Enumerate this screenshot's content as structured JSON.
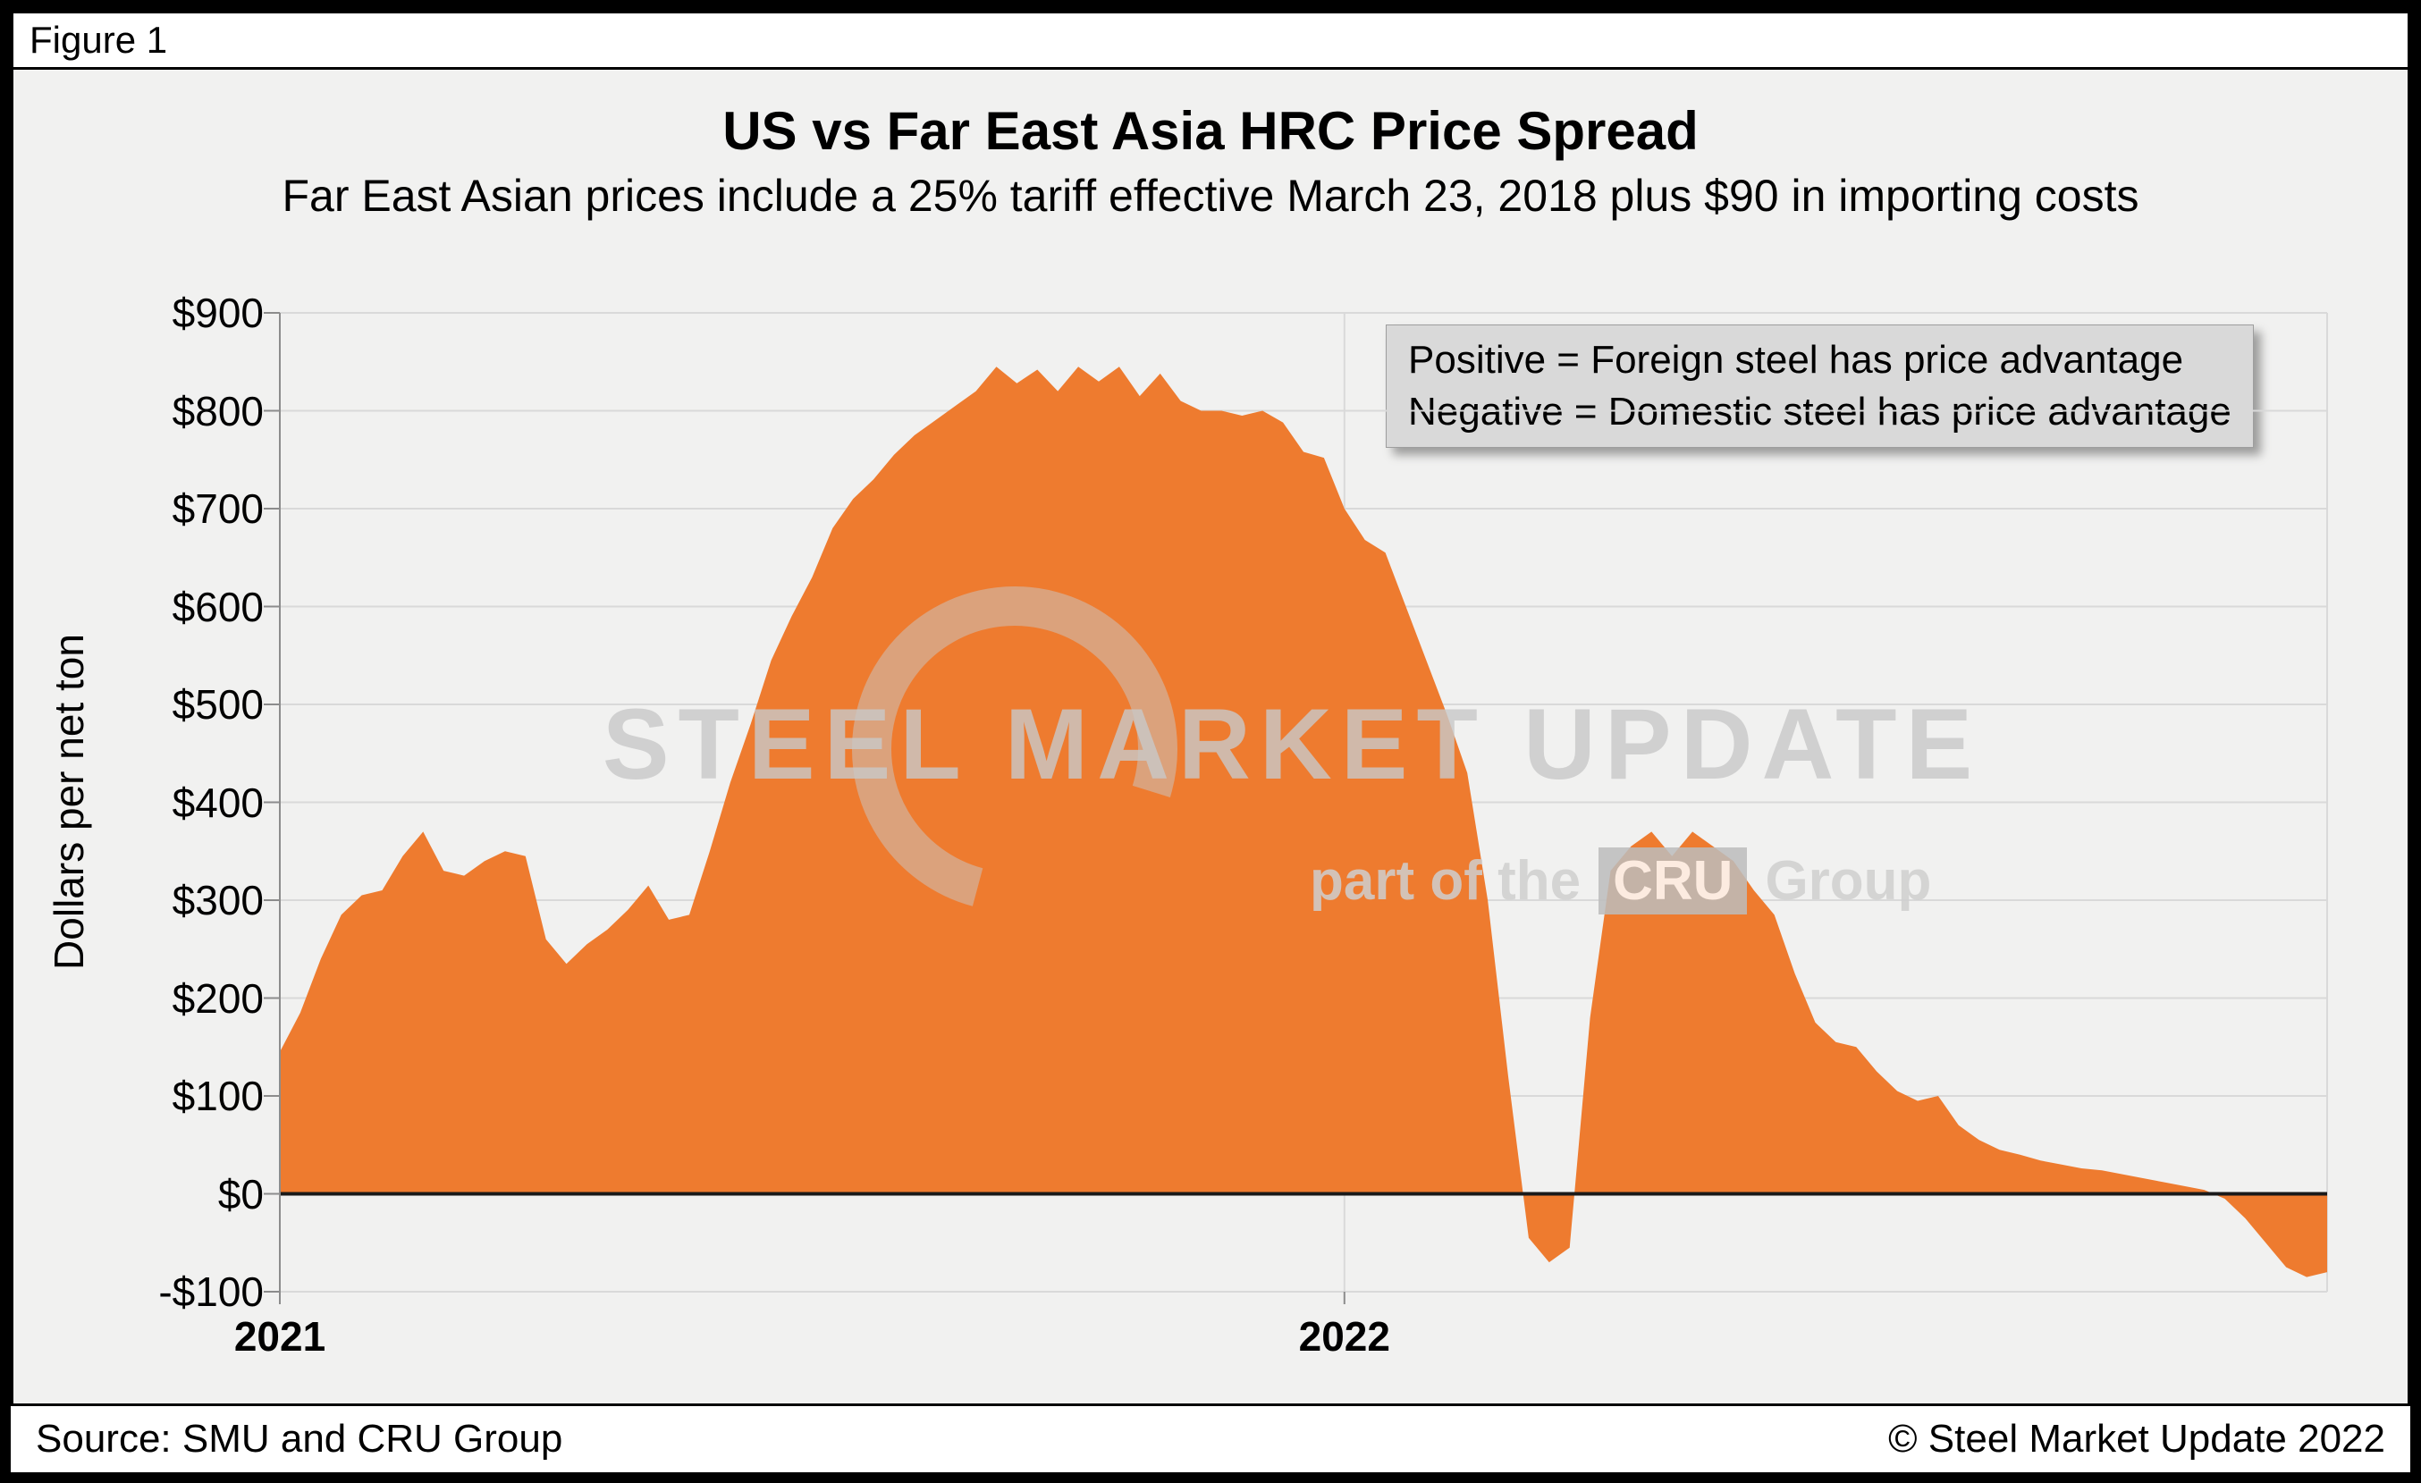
{
  "figure_label": "Figure 1",
  "chart": {
    "title": "US vs Far East Asia HRC Price Spread",
    "subtitle": "Far East Asian prices include a 25% tariff effective March 23, 2018 plus $90 in importing costs",
    "y_axis_title": "Dollars per net ton",
    "legend_line1": "Positive = Foreign steel has price advantage",
    "legend_line2": "Negative = Domestic steel has price advantage"
  },
  "watermark": {
    "line1": "STEEL MARKET UPDATE",
    "line2_prefix": "part of the",
    "line2_logo": "CRU",
    "line2_suffix": "Group"
  },
  "footer": {
    "source": "Source: SMU and CRU Group",
    "copyright": "© Steel Market Update 2022"
  },
  "colors": {
    "area": "#EE7B2F",
    "grid": "#d9d9d9",
    "axis": "#8c8c8c",
    "zero_line": "#1a1a1a",
    "legend_bg": "#d9d9d9",
    "panel_bg": "#f1f1f0"
  },
  "chart_data": {
    "type": "area",
    "title": "US vs Far East Asia HRC Price Spread",
    "unit": "USD per net ton",
    "x_unit": "weeks",
    "weeks_span": 100,
    "x_ticks": [
      {
        "label": "2021",
        "week": 0
      },
      {
        "label": "2022",
        "week": 52
      }
    ],
    "ylim": [
      -100,
      900
    ],
    "y_tick_step": 100,
    "y_tick_labels": [
      "$900",
      "$800",
      "$700",
      "$600",
      "$500",
      "$400",
      "$300",
      "$200",
      "$100",
      "$0",
      "-$100"
    ],
    "values": [
      145,
      185,
      240,
      285,
      305,
      310,
      345,
      370,
      330,
      325,
      340,
      350,
      345,
      260,
      235,
      255,
      270,
      290,
      315,
      280,
      285,
      350,
      420,
      480,
      545,
      590,
      630,
      680,
      710,
      730,
      755,
      775,
      790,
      805,
      820,
      845,
      828,
      842,
      820,
      845,
      830,
      845,
      815,
      838,
      810,
      800,
      800,
      795,
      800,
      788,
      758,
      752,
      700,
      668,
      655,
      600,
      545,
      490,
      430,
      300,
      120,
      -45,
      -70,
      -55,
      180,
      330,
      355,
      370,
      345,
      370,
      355,
      340,
      310,
      285,
      225,
      175,
      155,
      150,
      125,
      105,
      95,
      100,
      70,
      55,
      45,
      40,
      34,
      30,
      26,
      24,
      20,
      16,
      12,
      8,
      4,
      -5,
      -25,
      -50,
      -75,
      -85,
      -80
    ]
  }
}
